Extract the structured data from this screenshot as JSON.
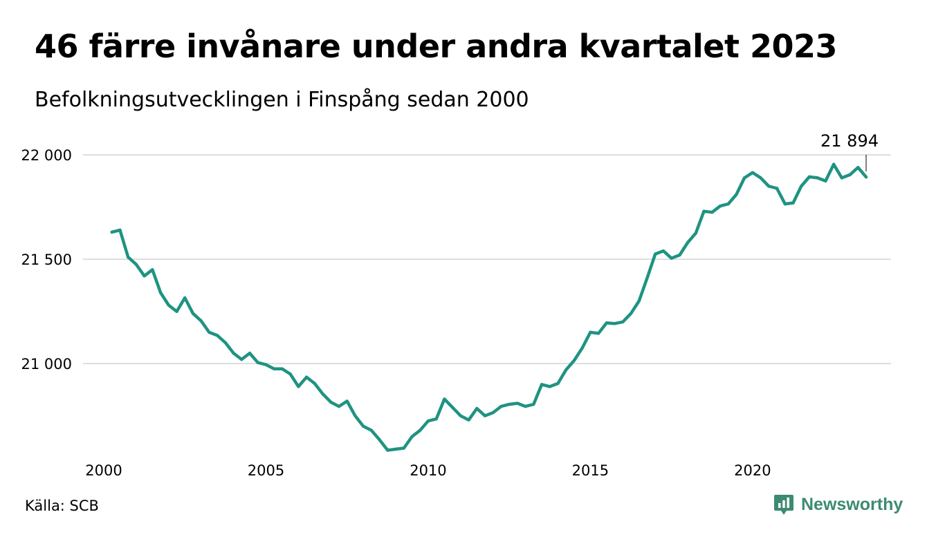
{
  "header": {
    "title": "46 färre invånare under andra kvartalet 2023",
    "subtitle": "Befolkningsutvecklingen i Finspång sedan 2000"
  },
  "footer": {
    "source": "Källa: SCB",
    "brand": "Newsworthy",
    "brand_icon": "newsworthy-logo-icon"
  },
  "colors": {
    "line": "#1f9382",
    "grid": "#dddddd",
    "brand": "#3d8a73"
  },
  "chart_data": {
    "type": "line",
    "title": "46 färre invånare under andra kvartalet 2023",
    "subtitle": "Befolkningsutvecklingen i Finspång sedan 2000",
    "xlabel": "",
    "ylabel": "",
    "x_unit": "quarter (decimal year)",
    "xlim": [
      2000,
      2023.5
    ],
    "ylim": [
      20590,
      22080
    ],
    "x_ticks": [
      2000,
      2005,
      2010,
      2015,
      2020
    ],
    "x_tick_labels": [
      "2000",
      "2005",
      "2010",
      "2015",
      "2020"
    ],
    "y_ticks": [
      21000,
      21500,
      22000
    ],
    "y_tick_labels": [
      "21 000",
      "21 500",
      "22 000"
    ],
    "grid": "horizontal",
    "legend": "none",
    "last_value_label": "21 894",
    "series": [
      {
        "x": [
          2000.25,
          2000.5,
          2000.75,
          2001.0,
          2001.25,
          2001.5,
          2001.75,
          2002.0,
          2002.25,
          2002.5,
          2002.75,
          2003.0,
          2003.25,
          2003.5,
          2003.75,
          2004.0,
          2004.25,
          2004.5,
          2004.75,
          2005.0,
          2005.25,
          2005.5,
          2005.75,
          2006.0,
          2006.25,
          2006.5,
          2006.75,
          2007.0,
          2007.25,
          2007.5,
          2007.75,
          2008.0,
          2008.25,
          2008.5,
          2008.75,
          2009.0,
          2009.25,
          2009.5,
          2009.75,
          2010.0,
          2010.25,
          2010.5,
          2010.75,
          2011.0,
          2011.25,
          2011.5,
          2011.75,
          2012.0,
          2012.25,
          2012.5,
          2012.75,
          2013.0,
          2013.25,
          2013.5,
          2013.75,
          2014.0,
          2014.25,
          2014.5,
          2014.75,
          2015.0,
          2015.25,
          2015.5,
          2015.75,
          2016.0,
          2016.25,
          2016.5,
          2016.75,
          2017.0,
          2017.25,
          2017.5,
          2017.75,
          2018.0,
          2018.25,
          2018.5,
          2018.75,
          2019.0,
          2019.25,
          2019.5,
          2019.75,
          2020.0,
          2020.25,
          2020.5,
          2020.75,
          2021.0,
          2021.25,
          2021.5,
          2021.75,
          2022.0,
          2022.25,
          2022.5,
          2022.75,
          2023.0,
          2023.25,
          2023.5
        ],
        "values": [
          21630,
          21640,
          21510,
          21475,
          21420,
          21450,
          21340,
          21280,
          21250,
          21315,
          21240,
          21205,
          21150,
          21135,
          21100,
          21050,
          21020,
          21050,
          21005,
          20995,
          20975,
          20975,
          20950,
          20890,
          20935,
          20905,
          20855,
          20815,
          20795,
          20820,
          20750,
          20700,
          20680,
          20635,
          20585,
          20590,
          20595,
          20650,
          20680,
          20725,
          20735,
          20830,
          20790,
          20750,
          20730,
          20785,
          20750,
          20765,
          20795,
          20805,
          20810,
          20795,
          20805,
          20900,
          20890,
          20905,
          20970,
          21015,
          21075,
          21150,
          21145,
          21195,
          21192,
          21200,
          21240,
          21300,
          21410,
          21525,
          21540,
          21505,
          21520,
          21580,
          21625,
          21730,
          21725,
          21755,
          21765,
          21810,
          21890,
          21915,
          21890,
          21850,
          21840,
          21765,
          21770,
          21850,
          21895,
          21890,
          21875,
          21955,
          21890,
          21905,
          21940,
          21894
        ]
      }
    ]
  }
}
